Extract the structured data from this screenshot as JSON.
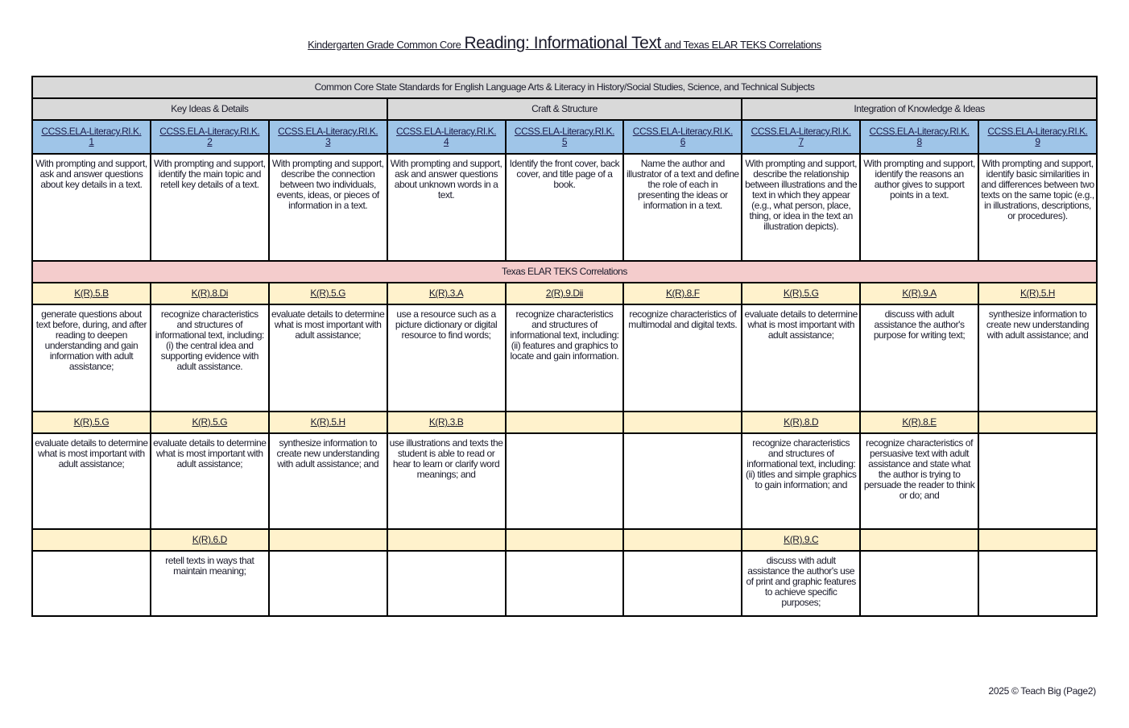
{
  "title": {
    "prefix": "Kindergarten Grade Common Core",
    "main": "Reading: Informational Text",
    "suffix": "and Texas ELAR TEKS Correlations"
  },
  "table": {
    "header": "Common Core State Standards for English Language Arts & Literacy in History/Social Studies, Science, and Technical Subjects",
    "groups": [
      "Key Ideas & Details",
      "Craft & Structure",
      "Integration of Knowledge & Ideas"
    ],
    "ccss_prefix": "CCSS.ELA-Literacy.RI.K.",
    "ccss": [
      {
        "num": "1",
        "text": "With prompting and support, ask and answer questions about key details in a text."
      },
      {
        "num": "2",
        "text": "With prompting and support, identify the main topic and retell key details of a text."
      },
      {
        "num": "3",
        "text": "With prompting and support, describe the connection between two individuals, events, ideas, or pieces of information in a text."
      },
      {
        "num": "4",
        "text": "With prompting and support, ask and answer questions about unknown words in a text."
      },
      {
        "num": "5",
        "text": "Identify the front cover, back cover, and title page of a book."
      },
      {
        "num": "6",
        "text": "Name the author and illustrator of a text and define the role of each in presenting the ideas or information in a text."
      },
      {
        "num": "7",
        "text": "With prompting and support, describe the relationship between illustrations and the text in which they appear (e.g., what person, place, thing, or idea in the text an illustration depicts)."
      },
      {
        "num": "8",
        "text": "With prompting and support, identify the reasons an author gives to support points in a text."
      },
      {
        "num": "9",
        "text": "With prompting and support, identify basic similarities in and differences between two texts on the same topic (e.g., in illustrations, descriptions, or procedures)."
      }
    ],
    "texas_header": "Texas ELAR TEKS Correlations",
    "teks_rows": [
      [
        {
          "code": "K(R).5.B",
          "text": "generate questions about text before, during, and after reading to deepen understanding and gain information with adult assistance;"
        },
        {
          "code": "K(R).8.Di",
          "text": "recognize characteristics and structures of informational text, including: (i) the central idea and supporting evidence with adult assistance."
        },
        {
          "code": "K(R).5.G",
          "text": "evaluate details to determine what is most important with adult assistance;"
        },
        {
          "code": "K(R).3.A",
          "text": "use a resource such as a picture dictionary or digital resource to find words;"
        },
        {
          "code": "2(R).9.Dii",
          "text": "recognize characteristics and structures of informational text, including: (ii) features and graphics to locate and gain information."
        },
        {
          "code": "K(R).8.F",
          "text": "recognize characteristics of multimodal and digital texts."
        },
        {
          "code": "K(R).5.G",
          "text": "evaluate details to determine what is most important with adult assistance;"
        },
        {
          "code": "K(R).9.A",
          "text": "discuss with adult assistance the author's purpose for writing text;"
        },
        {
          "code": "K(R).5.H",
          "text": "synthesize information to create new understanding with adult assistance; and"
        }
      ],
      [
        {
          "code": "K(R).5.G",
          "text": "evaluate details to determine what is most important with adult assistance;"
        },
        {
          "code": "K(R).5.G",
          "text": "evaluate details to determine what is most important with adult assistance;"
        },
        {
          "code": "K(R).5.H",
          "text": "synthesize information to create new understanding with adult assistance; and"
        },
        {
          "code": "K(R).3.B",
          "text": "use illustrations and texts the student is able to read or hear to learn or clarify word meanings; and"
        },
        {
          "code": "",
          "text": ""
        },
        {
          "code": "",
          "text": ""
        },
        {
          "code": "K(R).8.D",
          "text": "recognize characteristics and structures of informational text, including: (ii) titles and simple graphics to gain information; and"
        },
        {
          "code": "K(R).8.E",
          "text": "recognize characteristics of persuasive text with adult assistance and state what the author is trying to persuade the reader to think or do; and"
        },
        {
          "code": "",
          "text": ""
        }
      ],
      [
        {
          "code": "",
          "text": ""
        },
        {
          "code": "K(R).6.D",
          "text": "retell texts in ways that maintain meaning;"
        },
        {
          "code": "",
          "text": ""
        },
        {
          "code": "",
          "text": ""
        },
        {
          "code": "",
          "text": ""
        },
        {
          "code": "",
          "text": ""
        },
        {
          "code": "K(R).9.C",
          "text": "discuss with adult assistance the author's use of print and graphic features to achieve specific purposes;"
        },
        {
          "code": "",
          "text": ""
        },
        {
          "code": "",
          "text": ""
        }
      ]
    ]
  },
  "footer": "2025 © Teach Big (Page2)",
  "colors": {
    "header_gray": "#d9d9d9",
    "ccss_blue": "#9fc5e8",
    "texas_pink": "#f4cccc",
    "teks_yellow": "#fff2cc"
  }
}
